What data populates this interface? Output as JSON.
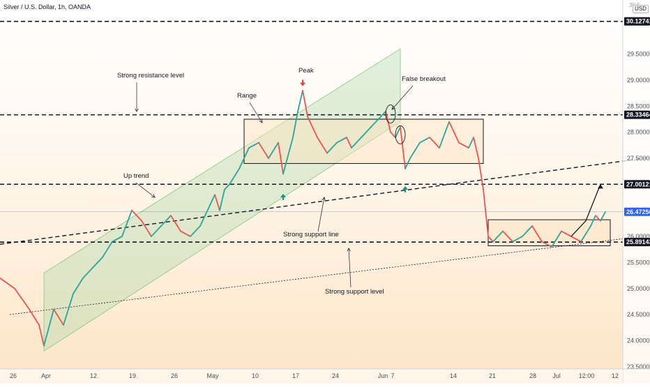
{
  "chart_data": {
    "type": "line",
    "title": "Silver / U.S. Dollar, 1h, OANDA",
    "currency": "USD",
    "top_tick_label": "30.5",
    "colors": {
      "up_candle": "#26a69a",
      "down_candle": "#ef5350",
      "price_line": "#2962ff",
      "channel_fill": "#a5d6a7",
      "background_top": "#ffffff",
      "background_bottom": "#fde5c6",
      "arrow_up": "#089981",
      "arrow_down": "#f23645"
    },
    "x_ticks": [
      "26",
      "Apr",
      "12",
      "19",
      "26",
      "May",
      "10",
      "17",
      "24",
      "Jun",
      "7",
      "14",
      "21",
      "28",
      "Jul",
      "12:00",
      "12"
    ],
    "y_ticks": [
      "29.50000",
      "29.00000",
      "28.50000",
      "28.00000",
      "27.50000",
      "26.00000",
      "25.50000",
      "25.00000",
      "24.50000",
      "24.00000",
      "23.50000"
    ],
    "ylim": [
      23.35,
      30.75
    ],
    "price_labels": [
      {
        "value": 30.12741,
        "text": "30.12741",
        "style": "dark"
      },
      {
        "value": 28.33464,
        "text": "28.33464",
        "style": "dark"
      },
      {
        "value": 27.00121,
        "text": "27.00121",
        "style": "dark"
      },
      {
        "value": 26.4725,
        "text": "26.47250",
        "style": "blue"
      },
      {
        "value": 25.89143,
        "text": "25.89143",
        "style": "dark"
      }
    ],
    "annotations": [
      {
        "id": "resistance",
        "text": "Strong resistance level"
      },
      {
        "id": "peak",
        "text": "Peak"
      },
      {
        "id": "range",
        "text": "Range"
      },
      {
        "id": "false-breakout",
        "text": "False breakout"
      },
      {
        "id": "up-trend",
        "text": "Up trend"
      },
      {
        "id": "support-line",
        "text": "Strong support line"
      },
      {
        "id": "support-level",
        "text": "Strong support level"
      }
    ],
    "price_path": [
      [
        0,
        25.2
      ],
      [
        3,
        25.0
      ],
      [
        6,
        24.6
      ],
      [
        8,
        24.3
      ],
      [
        9,
        23.9
      ],
      [
        11,
        24.6
      ],
      [
        13,
        24.3
      ],
      [
        15,
        24.9
      ],
      [
        17,
        25.2
      ],
      [
        19,
        25.4
      ],
      [
        21,
        25.6
      ],
      [
        23,
        25.9
      ],
      [
        25,
        26.0
      ],
      [
        27,
        26.5
      ],
      [
        29,
        26.3
      ],
      [
        31,
        26.0
      ],
      [
        33,
        26.2
      ],
      [
        35,
        26.4
      ],
      [
        37,
        26.1
      ],
      [
        39,
        26.0
      ],
      [
        41,
        26.2
      ],
      [
        43,
        26.6
      ],
      [
        44,
        26.8
      ],
      [
        45,
        26.5
      ],
      [
        46,
        26.9
      ],
      [
        47,
        27.0
      ],
      [
        49,
        27.3
      ],
      [
        51,
        27.7
      ],
      [
        53,
        27.8
      ],
      [
        55,
        27.5
      ],
      [
        57,
        27.8
      ],
      [
        58,
        27.2
      ],
      [
        60,
        27.9
      ],
      [
        61,
        28.4
      ],
      [
        62,
        28.8
      ],
      [
        63,
        28.3
      ],
      [
        65,
        27.9
      ],
      [
        67,
        27.6
      ],
      [
        69,
        27.8
      ],
      [
        71,
        27.9
      ],
      [
        72,
        27.7
      ],
      [
        74,
        27.9
      ],
      [
        76,
        28.1
      ],
      [
        78,
        28.3
      ],
      [
        79,
        28.4
      ],
      [
        80,
        28.0
      ],
      [
        81,
        27.9
      ],
      [
        82,
        28.1
      ],
      [
        83,
        27.3
      ],
      [
        84,
        27.5
      ],
      [
        86,
        27.8
      ],
      [
        88,
        27.9
      ],
      [
        90,
        27.7
      ],
      [
        92,
        28.2
      ],
      [
        94,
        27.8
      ],
      [
        96,
        27.7
      ],
      [
        97,
        27.9
      ],
      [
        98,
        27.5
      ],
      [
        99,
        26.9
      ],
      [
        100,
        26.0
      ],
      [
        101,
        25.9
      ],
      [
        103,
        26.1
      ],
      [
        105,
        25.9
      ],
      [
        107,
        26.0
      ],
      [
        109,
        26.2
      ],
      [
        111,
        25.9
      ],
      [
        113,
        25.8
      ],
      [
        115,
        26.1
      ],
      [
        117,
        26.0
      ],
      [
        119,
        25.9
      ],
      [
        121,
        26.2
      ],
      [
        122,
        26.4
      ],
      [
        123,
        26.3
      ],
      [
        124,
        26.47
      ]
    ],
    "levels": [
      {
        "name": "resistance-level",
        "value": 30.12741
      },
      {
        "name": "range-top-level",
        "value": 28.33464
      },
      {
        "name": "breakout-target-level",
        "value": 27.00121
      },
      {
        "name": "support-level",
        "value": 25.89143
      }
    ],
    "support_line": {
      "x": [
        0,
        140
      ],
      "y": [
        25.85,
        27.6
      ]
    },
    "dotted_trendline": {
      "x": [
        2,
        140
      ],
      "y": [
        24.5,
        26.1
      ]
    },
    "channel": {
      "lower": {
        "x": [
          9,
          82
        ],
        "y": [
          23.8,
          28.2
        ]
      },
      "upper": {
        "x": [
          9,
          82
        ],
        "y": [
          25.3,
          29.6
        ]
      }
    },
    "range_box": {
      "x": [
        50,
        99
      ],
      "y": [
        27.4,
        28.25
      ]
    },
    "consolidation_box": {
      "x": [
        100,
        125
      ],
      "y": [
        25.82,
        26.32
      ]
    },
    "markers": [
      {
        "type": "arrow-down",
        "x": 62,
        "value": 28.95
      },
      {
        "type": "arrow-up",
        "x": 58,
        "value": 26.75
      },
      {
        "type": "arrow-up",
        "x": 83,
        "value": 26.9
      }
    ],
    "ellipses": [
      {
        "x": 80,
        "value": 28.35
      },
      {
        "x": 82,
        "value": 27.95
      }
    ],
    "projection": {
      "x": [
        117,
        120,
        123
      ],
      "y": [
        26.0,
        26.3,
        27.0
      ]
    }
  }
}
